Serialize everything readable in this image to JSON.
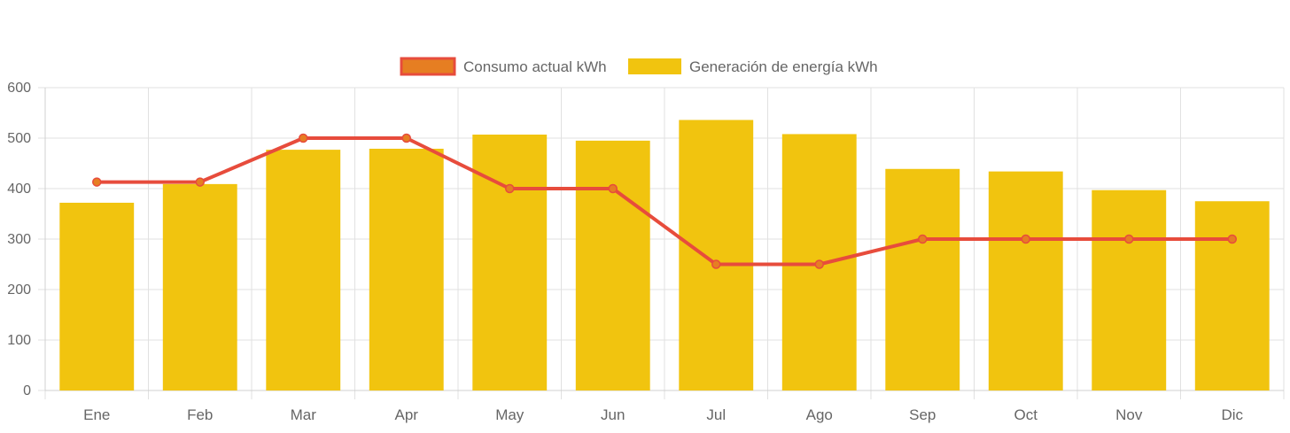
{
  "chart_data": {
    "type": "bar",
    "categories": [
      "Ene",
      "Feb",
      "Mar",
      "Apr",
      "May",
      "Jun",
      "Jul",
      "Ago",
      "Sep",
      "Oct",
      "Nov",
      "Dic"
    ],
    "series": [
      {
        "name": "Consumo actual kWh",
        "type": "line",
        "color": "#e74c3c",
        "point_fill": "#e67e22",
        "values": [
          413,
          413,
          500,
          500,
          400,
          400,
          250,
          250,
          300,
          300,
          300,
          300
        ]
      },
      {
        "name": "Generación de energía kWh",
        "type": "bar",
        "color": "#f1c40f",
        "values": [
          372,
          409,
          477,
          479,
          507,
          495,
          536,
          508,
          439,
          434,
          397,
          375
        ]
      }
    ],
    "ylim": [
      0,
      600
    ],
    "yticks": [
      "0",
      "100",
      "200",
      "300",
      "400",
      "500",
      "600"
    ],
    "grid": true,
    "legend": "top"
  }
}
